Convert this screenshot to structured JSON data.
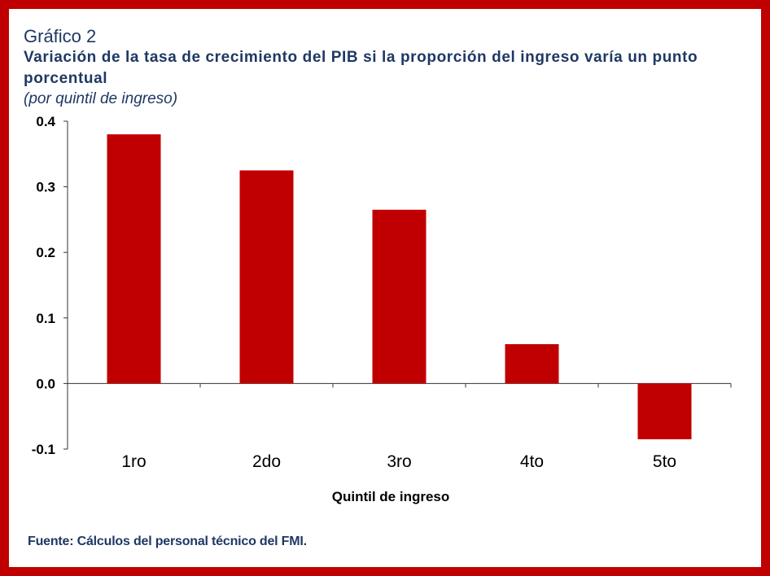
{
  "title": "Gráfico 2",
  "subtitle": "Variación de la tasa de crecimiento del PIB si la proporción del ingreso varía un punto porcentual",
  "note": "(por quintil de ingreso)",
  "source": "Fuente: Cálculos del personal técnico del FMI.",
  "colors": {
    "frame": "#c00000",
    "bar": "#c00000",
    "title": "#1f3864"
  },
  "chart_data": {
    "type": "bar",
    "categories": [
      "1ro",
      "2do",
      "3ro",
      "4to",
      "5to"
    ],
    "values": [
      0.38,
      0.325,
      0.265,
      0.06,
      -0.085
    ],
    "xlabel": "Quintil de ingreso",
    "ylabel": "",
    "ylim": [
      -0.1,
      0.4
    ],
    "yticks": [
      "0.4",
      "0.3",
      "0.2",
      "0.1",
      "0.0",
      "-0.1"
    ],
    "grid": false,
    "legend": "none"
  }
}
